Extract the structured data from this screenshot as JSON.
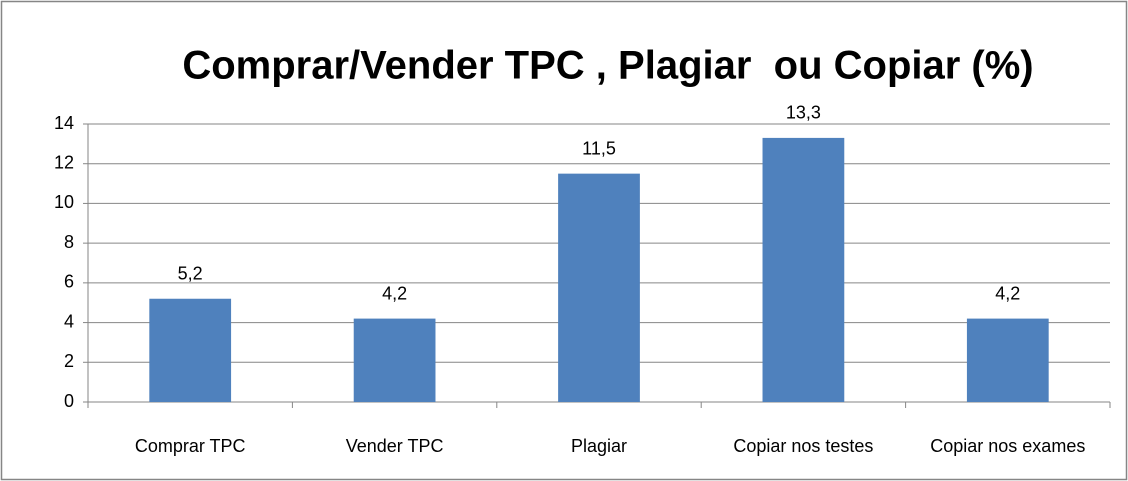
{
  "chart_data": {
    "type": "bar",
    "title": "Comprar/Vender TPC , Plagiar  ou Copiar (%)",
    "categories": [
      "Comprar TPC",
      "Vender TPC",
      "Plagiar",
      "Copiar nos testes",
      "Copiar nos exames"
    ],
    "values": [
      5.2,
      4.2,
      11.5,
      13.3,
      4.2
    ],
    "value_labels": [
      "5,2",
      "4,2",
      "11,5",
      "13,3",
      "4,2"
    ],
    "color": "#4f81bd",
    "ylim": [
      0,
      14
    ],
    "yticks": [
      0,
      2,
      4,
      6,
      8,
      10,
      12,
      14
    ],
    "grid": true
  }
}
